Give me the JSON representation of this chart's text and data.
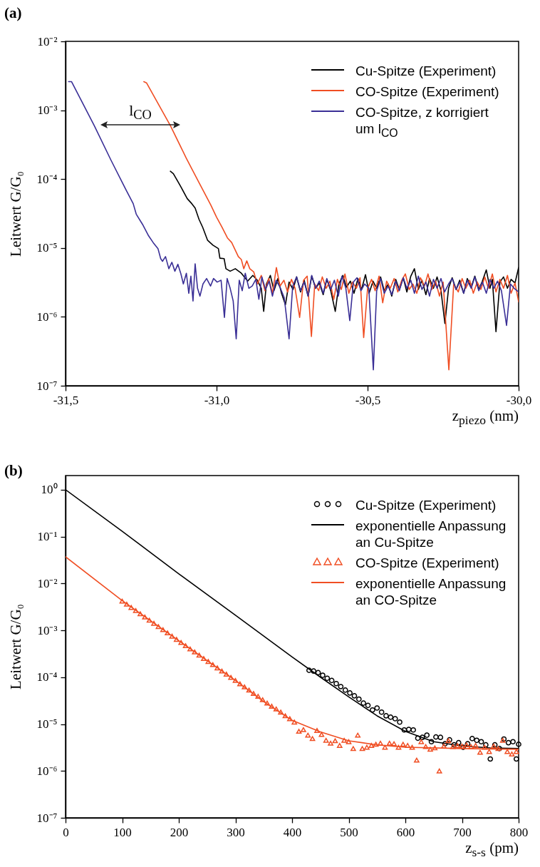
{
  "chart_data": [
    {
      "type": "line",
      "title": "(a)",
      "xlabel": "z$_{piezo}$ (nm)",
      "ylabel": "Leitwert G/G₀",
      "log": true,
      "legend": "top right",
      "xlim": [
        -31.5,
        -30.0
      ],
      "xticks": [
        {
          "value": -31.5,
          "label": "-31,5"
        },
        {
          "value": -31.0,
          "label": "-31,0"
        },
        {
          "value": -30.5,
          "label": "-30,5"
        },
        {
          "value": -30.0,
          "label": "-30,0"
        }
      ],
      "ylim": [
        1e-07,
        0.01
      ],
      "yticks": [
        {
          "value": 1e-07,
          "label": "10⁻⁷"
        },
        {
          "value": 1e-06,
          "label": "10⁻⁶"
        },
        {
          "value": 1e-05,
          "label": "10⁻⁵"
        },
        {
          "value": 0.0001,
          "label": "10⁻⁴"
        },
        {
          "value": 0.001,
          "label": "10⁻³"
        },
        {
          "value": 0.01,
          "label": "10⁻²"
        }
      ],
      "annotations": [
        "l$_{CO}$"
      ],
      "series": [
        {
          "name": "Cu-Spitze (Experiment)",
          "color": "#000000",
          "x": [
            -31.153,
            -31.143,
            -31.12,
            -31.097,
            -31.082,
            -31.071,
            -31.058,
            -31.046,
            -31.03,
            -31.012,
            -30.994,
            -30.989,
            -30.975,
            -30.969,
            -30.955,
            -30.938,
            -30.918,
            -30.897,
            -30.88,
            -30.865,
            -30.852,
            -30.844,
            -30.835,
            -30.822,
            -30.81,
            -30.797,
            -30.785,
            -30.772,
            -30.76,
            -30.747,
            -30.735,
            -30.722,
            -30.71,
            -30.697,
            -30.685,
            -30.672,
            -30.66,
            -30.647,
            -30.635,
            -30.622,
            -30.607,
            -30.595,
            -30.582,
            -30.57,
            -30.557,
            -30.545,
            -30.532,
            -30.52,
            -30.507,
            -30.495,
            -30.482,
            -30.47,
            -30.457,
            -30.445,
            -30.432,
            -30.42,
            -30.407,
            -30.395,
            -30.382,
            -30.37,
            -30.357,
            -30.345,
            -30.332,
            -30.32,
            -30.307,
            -30.295,
            -30.282,
            -30.27,
            -30.257,
            -30.244,
            -30.232,
            -30.22,
            -30.207,
            -30.195,
            -30.182,
            -30.17,
            -30.157,
            -30.145,
            -30.132,
            -30.12,
            -30.107,
            -30.095,
            -30.087,
            -30.075,
            -30.062,
            -30.05,
            -30.037,
            -30.025,
            -30.012,
            -30.0
          ],
          "values": [
            0.00013,
            0.00012,
            8e-05,
            5.2e-05,
            4.4e-05,
            3.8e-05,
            2.6e-05,
            2e-05,
            1.3e-05,
            1.1e-05,
            9.8e-06,
            7.1e-06,
            7e-06,
            5e-06,
            4.6e-06,
            5e-06,
            4.3e-06,
            3.3e-06,
            4e-06,
            3.4e-06,
            2.6e-06,
            1.2e-06,
            3e-06,
            4e-06,
            2.4e-06,
            3.6e-06,
            2.2e-06,
            1.5e-06,
            3.2e-06,
            2.5e-06,
            3.8e-06,
            2.3e-06,
            3.4e-06,
            2e-06,
            3.9e-06,
            2.6e-06,
            3.1e-06,
            2.1e-06,
            3.5e-06,
            2.4e-06,
            1.2e-06,
            3e-06,
            4e-06,
            2.7e-06,
            3.3e-06,
            2.2e-06,
            3.6e-06,
            2.5e-06,
            4.1e-06,
            2.2e-06,
            3.3e-06,
            2.6e-06,
            3.8e-06,
            2.4e-06,
            3e-06,
            2e-06,
            3.5e-06,
            2.5e-06,
            3.7e-06,
            2.3e-06,
            3.9e-06,
            5e-06,
            2.5e-06,
            3.4e-06,
            2.1e-06,
            3.6e-06,
            2.6e-06,
            3.8e-06,
            2.4e-06,
            8e-07,
            2.6e-06,
            3.7e-06,
            2.5e-06,
            3.4e-06,
            2.2e-06,
            3.6e-06,
            2.7e-06,
            3.9e-06,
            2.5e-06,
            3.3e-06,
            4.8e-06,
            2.6e-06,
            3.5e-06,
            6.1e-07,
            3.2e-06,
            3.8e-06,
            2.6e-06,
            3.5e-06,
            3.1e-06,
            5.2e-06
          ]
        },
        {
          "name": "CO-Spitze (Experiment)",
          "color": "#f04e23",
          "x": [
            -31.241,
            -31.232,
            -31.153,
            -31.1,
            -31.05,
            -31.019,
            -31.0,
            -30.982,
            -30.964,
            -30.95,
            -30.938,
            -30.928,
            -30.918,
            -30.91,
            -30.9,
            -30.89,
            -30.877,
            -30.865,
            -30.852,
            -30.84,
            -30.827,
            -30.815,
            -30.802,
            -30.79,
            -30.777,
            -30.765,
            -30.752,
            -30.74,
            -30.725,
            -30.712,
            -30.7,
            -30.686,
            -30.675,
            -30.662,
            -30.65,
            -30.637,
            -30.625,
            -30.612,
            -30.6,
            -30.587,
            -30.575,
            -30.562,
            -30.55,
            -30.537,
            -30.525,
            -30.513,
            -30.5,
            -30.487,
            -30.475,
            -30.462,
            -30.45,
            -30.437,
            -30.425,
            -30.412,
            -30.4,
            -30.387,
            -30.375,
            -30.362,
            -30.35,
            -30.337,
            -30.325,
            -30.312,
            -30.3,
            -30.287,
            -30.275,
            -30.262,
            -30.25,
            -30.231,
            -30.215,
            -30.2,
            -30.187,
            -30.175,
            -30.162,
            -30.15,
            -30.137,
            -30.125,
            -30.112,
            -30.1,
            -30.087,
            -30.075,
            -30.062,
            -30.05,
            -30.037,
            -30.025,
            -30.012,
            -30.0
          ],
          "values": [
            0.0026,
            0.0025,
            0.0006,
            0.0002,
            7.6e-05,
            4.2e-05,
            2.8e-05,
            2e-05,
            1.4e-05,
            1.2e-05,
            9.3e-06,
            7.5e-06,
            6.8e-06,
            5e-06,
            6.5e-06,
            5e-06,
            4.5e-06,
            3e-06,
            4e-06,
            2.4e-06,
            3.6e-06,
            2.2e-06,
            5.2e-06,
            2.8e-06,
            3.4e-06,
            2.3e-06,
            3.5e-06,
            2.6e-06,
            9.8e-07,
            3.4e-06,
            3.9e-06,
            5.2e-07,
            3e-06,
            2.4e-06,
            3.8e-06,
            2.6e-06,
            3.3e-06,
            1.8e-06,
            3.5e-06,
            2.5e-06,
            4.2e-06,
            2.2e-06,
            3.2e-06,
            2.6e-06,
            3.7e-06,
            5e-07,
            2.6e-06,
            3.5e-06,
            2.4e-06,
            3.9e-06,
            1.6e-06,
            3.3e-06,
            2.6e-06,
            3.6e-06,
            2.3e-06,
            3.4e-06,
            4.2e-06,
            2.5e-06,
            3e-06,
            2.2e-06,
            3.7e-06,
            2.8e-06,
            4.2e-06,
            2.5e-06,
            3.3e-06,
            2e-06,
            3.2e-06,
            1.7e-07,
            3e-06,
            2.3e-06,
            3.6e-06,
            2.6e-06,
            3.4e-06,
            2.2e-06,
            3.2e-06,
            2.5e-06,
            3.8e-06,
            2.6e-06,
            4.2e-06,
            2.3e-06,
            3.5e-06,
            2.6e-06,
            4e-06,
            2.2e-06,
            3.1e-06,
            1.65e-06
          ]
        },
        {
          "name": "CO-Spitze, z korrigiert um l$_{CO}$",
          "color": "#3a2f96",
          "x": [
            -31.49,
            -31.48,
            -31.405,
            -31.35,
            -31.3,
            -31.276,
            -31.266,
            -31.245,
            -31.225,
            -31.21,
            -31.194,
            -31.185,
            -31.179,
            -31.169,
            -31.158,
            -31.148,
            -31.138,
            -31.128,
            -31.118,
            -31.11,
            -31.1,
            -31.092,
            -31.085,
            -31.078,
            -31.071,
            -31.063,
            -31.055,
            -31.045,
            -31.033,
            -31.02,
            -31.01,
            -30.998,
            -30.985,
            -30.974,
            -30.965,
            -30.955,
            -30.945,
            -30.935,
            -30.925,
            -30.915,
            -30.905,
            -30.893,
            -30.882,
            -30.87,
            -30.86,
            -30.85,
            -30.838,
            -30.826,
            -30.815,
            -30.803,
            -30.79,
            -30.776,
            -30.76,
            -30.748,
            -30.735,
            -30.722,
            -30.71,
            -30.697,
            -30.685,
            -30.672,
            -30.66,
            -30.647,
            -30.635,
            -30.622,
            -30.61,
            -30.597,
            -30.585,
            -30.572,
            -30.559,
            -30.547,
            -30.535,
            -30.522,
            -30.51,
            -30.496,
            -30.481,
            -30.47,
            -30.457,
            -30.445,
            -30.432,
            -30.42,
            -30.407,
            -30.395,
            -30.382,
            -30.37,
            -30.357,
            -30.345,
            -30.332,
            -30.32,
            -30.307,
            -30.295,
            -30.282,
            -30.27,
            -30.257,
            -30.245,
            -30.232,
            -30.22,
            -30.207,
            -30.195,
            -30.182,
            -30.17,
            -30.157,
            -30.145,
            -30.132,
            -30.12,
            -30.107,
            -30.095,
            -30.082,
            -30.07,
            -30.057,
            -30.04,
            -30.027,
            -30.015,
            -30.0
          ],
          "values": [
            0.0026,
            0.0026,
            0.0006,
            0.00019,
            7e-05,
            4.4e-05,
            3.1e-05,
            2.2e-05,
            1.5e-05,
            1.2e-05,
            9.8e-06,
            7e-06,
            6.4e-06,
            7.5e-06,
            5e-06,
            6.2e-06,
            4.6e-06,
            5.8e-06,
            4.2e-06,
            3e-06,
            4.3e-06,
            2.2e-06,
            3.9e-06,
            1.7e-06,
            5.9e-06,
            2.6e-06,
            2e-06,
            3e-06,
            3.6e-06,
            2.8e-06,
            3.6e-06,
            3.2e-06,
            3.4e-06,
            9.8e-07,
            3.6e-06,
            2.6e-06,
            1.7e-06,
            4.8e-07,
            3.4e-06,
            2.4e-06,
            4.3e-06,
            2.6e-06,
            2.8e-06,
            3.5e-06,
            1.8e-06,
            3.8e-06,
            2.5e-06,
            3.3e-06,
            2e-06,
            3.4e-06,
            2.7e-06,
            1.9e-06,
            4.8e-07,
            2.8e-06,
            3.8e-06,
            2.4e-06,
            3.2e-06,
            2e-06,
            4e-06,
            2.6e-06,
            3.3e-06,
            2.2e-06,
            3.6e-06,
            2.5e-06,
            3.4e-06,
            2e-06,
            3.9e-06,
            2.6e-06,
            8.8e-07,
            3.2e-06,
            3.7e-06,
            2.4e-06,
            3e-06,
            2.6e-06,
            1.7e-07,
            2.4e-06,
            3.6e-06,
            2.2e-06,
            2.8e-06,
            2.1e-06,
            3.3e-06,
            2.4e-06,
            3.7e-06,
            2.6e-06,
            3.4e-06,
            2.2e-06,
            3.9e-06,
            2.5e-06,
            3.2e-06,
            2e-06,
            3.5e-06,
            2.6e-06,
            3.6e-06,
            2.3e-06,
            3e-06,
            3.6e-06,
            2.5e-06,
            3.2e-06,
            2.2e-06,
            3.4e-06,
            2.6e-06,
            3.8e-06,
            2.4e-06,
            3.2e-06,
            2.2e-06,
            3.5e-06,
            2.6e-06,
            3.3e-06,
            2.4e-06,
            7.5e-07,
            3e-06,
            2.6e-06,
            2.3e-06
          ]
        }
      ]
    },
    {
      "type": "scatter",
      "title": "(b)",
      "xlabel": "z$_{s-s}$ (pm)",
      "ylabel": "Leitwert G/G₀",
      "log": true,
      "legend": "top right",
      "xlim": [
        0,
        800
      ],
      "xticks": [
        0,
        100,
        200,
        300,
        400,
        500,
        600,
        700,
        800
      ],
      "ylim": [
        1e-07,
        2
      ],
      "yticks": [
        {
          "value": 1e-07,
          "label": "10⁻⁷"
        },
        {
          "value": 1e-06,
          "label": "10⁻⁶"
        },
        {
          "value": 1e-05,
          "label": "10⁻⁵"
        },
        {
          "value": 0.0001,
          "label": "10⁻⁴"
        },
        {
          "value": 0.001,
          "label": "10⁻³"
        },
        {
          "value": 0.01,
          "label": "10⁻²"
        },
        {
          "value": 0.1,
          "label": "10⁻¹"
        },
        {
          "value": 1,
          "label": "10⁰"
        }
      ],
      "series": [
        {
          "name": "Cu-Spitze (Experiment)",
          "type": "scatter",
          "marker": "circle",
          "color": "#000000",
          "x": [
            430,
            438,
            446,
            454,
            462,
            470,
            478,
            486,
            494,
            502,
            510,
            518,
            526,
            534,
            542,
            550,
            558,
            566,
            574,
            582,
            590,
            598,
            606,
            614,
            622,
            630,
            638,
            646,
            654,
            662,
            670,
            678,
            686,
            694,
            702,
            710,
            718,
            726,
            734,
            742,
            750,
            758,
            766,
            774,
            782,
            790,
            796,
            800
          ],
          "values": [
            0.00014,
            0.000135,
            0.000125,
            0.00011,
            9.5e-05,
            8.5e-05,
            7.3e-05,
            6.3e-05,
            5.3e-05,
            4.6e-05,
            4e-05,
            3.4e-05,
            2.8e-05,
            2.5e-05,
            2e-05,
            2.2e-05,
            1.8e-05,
            1.5e-05,
            1.4e-05,
            1.3e-05,
            1.1e-05,
            7.5e-06,
            7.7e-06,
            7.5e-06,
            5e-06,
            5.2e-06,
            5.8e-06,
            4.2e-06,
            5.3e-06,
            5.2e-06,
            3.8e-06,
            4.6e-06,
            3.6e-06,
            4e-06,
            3.2e-06,
            3.8e-06,
            4.9e-06,
            4.5e-06,
            4.2e-06,
            3.6e-06,
            1.8e-06,
            3.6e-06,
            3e-06,
            4.8e-06,
            4e-06,
            4.2e-06,
            1.8e-06,
            3.7e-06
          ]
        },
        {
          "name": "exponentielle Anpassung an Cu-Spitze",
          "type": "line",
          "color": "#000000",
          "x": [
            0,
            100,
            200,
            300,
            400,
            450,
            500,
            550,
            600,
            650,
            700,
            750,
            800
          ],
          "values": [
            1.0,
            0.13,
            0.016,
            0.0021,
            0.00027,
            0.0001,
            3.8e-05,
            1.5e-05,
            7e-06,
            4.2e-06,
            3.4e-06,
            3.1e-06,
            3e-06
          ]
        },
        {
          "name": "CO-Spitze (Experiment)",
          "type": "scatter",
          "marker": "triangle",
          "color": "#f04e23",
          "x": [
            100,
            108,
            116,
            124,
            132,
            140,
            148,
            156,
            164,
            172,
            180,
            188,
            196,
            204,
            212,
            220,
            228,
            236,
            244,
            252,
            260,
            268,
            276,
            284,
            292,
            300,
            308,
            316,
            324,
            332,
            340,
            348,
            356,
            364,
            372,
            380,
            388,
            396,
            404,
            412,
            420,
            428,
            436,
            444,
            452,
            460,
            468,
            476,
            484,
            492,
            500,
            508,
            516,
            524,
            532,
            540,
            548,
            556,
            564,
            572,
            580,
            588,
            596,
            604,
            612,
            620,
            628,
            636,
            644,
            652,
            660,
            668,
            676,
            684,
            692,
            700,
            708,
            716,
            724,
            732,
            740,
            748,
            756,
            764,
            772,
            780,
            788,
            796
          ],
          "values": [
            0.0042,
            0.0036,
            0.00307,
            0.00263,
            0.00225,
            0.00192,
            0.00164,
            0.00141,
            0.0012,
            0.00103,
            0.00088,
            0.00075,
            0.00064,
            0.00055,
            0.00047,
            0.0004,
            0.000345,
            0.000295,
            0.00025,
            0.000216,
            0.000185,
            0.000158,
            0.000135,
            0.000116,
            9.9e-05,
            8.5e-05,
            7.2e-05,
            6.2e-05,
            5.3e-05,
            4.5e-05,
            3.9e-05,
            3.3e-05,
            2.8e-05,
            2.4e-05,
            2.1e-05,
            1.8e-05,
            1.5e-05,
            1.3e-05,
            1.1e-05,
            7e-06,
            7.6e-06,
            5.8e-06,
            4.9e-06,
            7.3e-06,
            6e-06,
            4.5e-06,
            3.9e-06,
            4.4e-06,
            3.5e-06,
            4.5e-06,
            4.2e-06,
            3e-06,
            5.8e-06,
            3e-06,
            3.2e-06,
            3.5e-06,
            3.7e-06,
            3.9e-06,
            3.2e-06,
            3.9e-06,
            3.8e-06,
            3.2e-06,
            3.7e-06,
            3.5e-06,
            3.2e-06,
            1.7e-06,
            4.2e-06,
            3.3e-06,
            2.9e-06,
            3.1e-06,
            1e-06,
            3.4e-06,
            4.4e-06,
            3.3e-06,
            3.5e-06,
            3.4e-06,
            3.6e-06,
            3.3e-06,
            3.5e-06,
            2.5e-06,
            3.2e-06,
            2.6e-06,
            3.4e-06,
            3e-06,
            4.5e-06,
            2.6e-06,
            2.3e-06,
            2.6e-06
          ]
        },
        {
          "name": "exponentielle Anpassung an CO-Spitze",
          "type": "line",
          "color": "#f04e23",
          "x": [
            0,
            100,
            200,
            300,
            350,
            400,
            450,
            500,
            550,
            600,
            700,
            800
          ],
          "values": [
            0.037,
            0.0043,
            0.0006,
            8.5e-05,
            3e-05,
            1.2e-05,
            6.8e-06,
            4.4e-06,
            3.6e-06,
            3.2e-06,
            3e-06,
            2.9e-06
          ]
        }
      ]
    }
  ]
}
